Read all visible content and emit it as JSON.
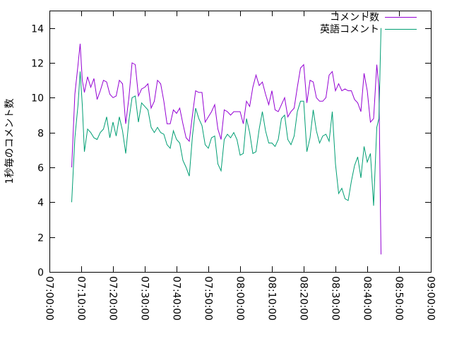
{
  "chart_data": {
    "type": "line",
    "title": "",
    "xlabel": "",
    "ylabel": "1秒毎のコメント数",
    "ylim": [
      0,
      15
    ],
    "xlim": [
      "07:00:00",
      "09:00:00"
    ],
    "yticks": [
      0,
      2,
      4,
      6,
      8,
      10,
      12,
      14
    ],
    "xticks": [
      "07:00:00",
      "07:10:00",
      "07:20:00",
      "07:30:00",
      "07:40:00",
      "07:50:00",
      "08:00:00",
      "08:10:00",
      "08:20:00",
      "08:30:00",
      "08:40:00",
      "08:50:00",
      "09:00:00"
    ],
    "legend_position": "top-right",
    "grid": false,
    "series": [
      {
        "name": "コメント数",
        "color": "#9400d3",
        "points": [
          [
            "07:07:00",
            6.0
          ],
          [
            "07:08:00",
            10.2
          ],
          [
            "07:09:00",
            11.9
          ],
          [
            "07:09:40",
            13.1
          ],
          [
            "07:10:20",
            11.0
          ],
          [
            "07:11:00",
            10.3
          ],
          [
            "07:12:00",
            11.2
          ],
          [
            "07:13:00",
            10.6
          ],
          [
            "07:14:00",
            11.1
          ],
          [
            "07:15:00",
            9.9
          ],
          [
            "07:16:00",
            10.4
          ],
          [
            "07:17:00",
            11.0
          ],
          [
            "07:18:00",
            10.9
          ],
          [
            "07:19:00",
            10.2
          ],
          [
            "07:20:00",
            10.0
          ],
          [
            "07:21:00",
            10.1
          ],
          [
            "07:22:00",
            11.0
          ],
          [
            "07:23:00",
            10.8
          ],
          [
            "07:24:00",
            8.5
          ],
          [
            "07:25:00",
            10.0
          ],
          [
            "07:26:00",
            12.0
          ],
          [
            "07:27:00",
            11.9
          ],
          [
            "07:28:00",
            10.1
          ],
          [
            "07:29:00",
            10.5
          ],
          [
            "07:30:00",
            10.6
          ],
          [
            "07:31:00",
            10.8
          ],
          [
            "07:32:00",
            9.4
          ],
          [
            "07:33:00",
            9.8
          ],
          [
            "07:34:00",
            11.0
          ],
          [
            "07:35:00",
            10.8
          ],
          [
            "07:36:00",
            9.8
          ],
          [
            "07:37:00",
            8.5
          ],
          [
            "07:38:00",
            8.5
          ],
          [
            "07:39:00",
            9.3
          ],
          [
            "07:40:00",
            9.1
          ],
          [
            "07:41:00",
            9.4
          ],
          [
            "07:42:00",
            8.5
          ],
          [
            "07:43:00",
            7.7
          ],
          [
            "07:44:00",
            7.5
          ],
          [
            "07:45:00",
            9.0
          ],
          [
            "07:46:00",
            10.4
          ],
          [
            "07:47:00",
            10.3
          ],
          [
            "07:48:00",
            10.3
          ],
          [
            "07:49:00",
            8.6
          ],
          [
            "07:50:00",
            8.9
          ],
          [
            "07:51:00",
            9.2
          ],
          [
            "07:52:00",
            9.6
          ],
          [
            "07:53:00",
            8.2
          ],
          [
            "07:54:00",
            7.6
          ],
          [
            "07:55:00",
            9.3
          ],
          [
            "07:56:00",
            9.2
          ],
          [
            "07:57:00",
            9.0
          ],
          [
            "07:58:00",
            9.2
          ],
          [
            "07:59:00",
            9.2
          ],
          [
            "08:00:00",
            9.2
          ],
          [
            "08:01:00",
            8.5
          ],
          [
            "08:02:00",
            9.8
          ],
          [
            "08:03:00",
            9.5
          ],
          [
            "08:04:00",
            10.6
          ],
          [
            "08:05:00",
            11.3
          ],
          [
            "08:06:00",
            10.7
          ],
          [
            "08:07:00",
            10.9
          ],
          [
            "08:08:00",
            10.2
          ],
          [
            "08:09:00",
            9.6
          ],
          [
            "08:10:00",
            10.4
          ],
          [
            "08:11:00",
            9.3
          ],
          [
            "08:12:00",
            9.2
          ],
          [
            "08:13:00",
            9.6
          ],
          [
            "08:14:00",
            10.0
          ],
          [
            "08:15:00",
            8.9
          ],
          [
            "08:16:00",
            9.2
          ],
          [
            "08:17:00",
            9.4
          ],
          [
            "08:18:00",
            10.6
          ],
          [
            "08:19:00",
            11.7
          ],
          [
            "08:20:00",
            11.9
          ],
          [
            "08:21:00",
            9.7
          ],
          [
            "08:22:00",
            11.0
          ],
          [
            "08:23:00",
            10.9
          ],
          [
            "08:24:00",
            10.0
          ],
          [
            "08:25:00",
            9.8
          ],
          [
            "08:26:00",
            9.8
          ],
          [
            "08:27:00",
            10.0
          ],
          [
            "08:28:00",
            11.3
          ],
          [
            "08:29:00",
            11.5
          ],
          [
            "08:30:00",
            10.4
          ],
          [
            "08:31:00",
            10.8
          ],
          [
            "08:32:00",
            10.4
          ],
          [
            "08:33:00",
            10.5
          ],
          [
            "08:34:00",
            10.4
          ],
          [
            "08:35:00",
            10.4
          ],
          [
            "08:36:00",
            9.9
          ],
          [
            "08:37:00",
            9.7
          ],
          [
            "08:38:00",
            9.2
          ],
          [
            "08:39:00",
            11.4
          ],
          [
            "08:40:00",
            10.4
          ],
          [
            "08:41:00",
            8.6
          ],
          [
            "08:42:00",
            8.8
          ],
          [
            "08:43:00",
            11.9
          ],
          [
            "08:43:40",
            10.6
          ],
          [
            "08:44:20",
            1.0
          ]
        ]
      },
      {
        "name": "英語コメント",
        "color": "#009e73",
        "points": [
          [
            "07:07:00",
            4.0
          ],
          [
            "07:08:00",
            7.7
          ],
          [
            "07:09:00",
            9.6
          ],
          [
            "07:09:40",
            11.5
          ],
          [
            "07:10:20",
            9.6
          ],
          [
            "07:11:00",
            6.9
          ],
          [
            "07:12:00",
            8.2
          ],
          [
            "07:13:00",
            8.0
          ],
          [
            "07:14:00",
            7.7
          ],
          [
            "07:15:00",
            7.6
          ],
          [
            "07:16:00",
            8.0
          ],
          [
            "07:17:00",
            8.2
          ],
          [
            "07:18:00",
            8.9
          ],
          [
            "07:19:00",
            7.7
          ],
          [
            "07:20:00",
            8.6
          ],
          [
            "07:21:00",
            7.8
          ],
          [
            "07:22:00",
            8.9
          ],
          [
            "07:23:00",
            8.1
          ],
          [
            "07:24:00",
            6.8
          ],
          [
            "07:25:00",
            8.7
          ],
          [
            "07:26:00",
            10.0
          ],
          [
            "07:27:00",
            10.1
          ],
          [
            "07:28:00",
            8.6
          ],
          [
            "07:29:00",
            9.7
          ],
          [
            "07:30:00",
            9.5
          ],
          [
            "07:31:00",
            9.3
          ],
          [
            "07:32:00",
            8.3
          ],
          [
            "07:33:00",
            8.0
          ],
          [
            "07:34:00",
            8.3
          ],
          [
            "07:35:00",
            8.0
          ],
          [
            "07:36:00",
            7.9
          ],
          [
            "07:37:00",
            7.3
          ],
          [
            "07:38:00",
            7.1
          ],
          [
            "07:39:00",
            8.1
          ],
          [
            "07:40:00",
            7.6
          ],
          [
            "07:41:00",
            7.4
          ],
          [
            "07:42:00",
            6.4
          ],
          [
            "07:43:00",
            6.0
          ],
          [
            "07:44:00",
            5.5
          ],
          [
            "07:45:00",
            7.8
          ],
          [
            "07:46:00",
            9.4
          ],
          [
            "07:47:00",
            8.8
          ],
          [
            "07:48:00",
            8.4
          ],
          [
            "07:49:00",
            7.3
          ],
          [
            "07:50:00",
            7.1
          ],
          [
            "07:51:00",
            7.7
          ],
          [
            "07:52:00",
            7.8
          ],
          [
            "07:53:00",
            6.2
          ],
          [
            "07:54:00",
            5.8
          ],
          [
            "07:55:00",
            7.6
          ],
          [
            "07:56:00",
            7.9
          ],
          [
            "07:57:00",
            7.7
          ],
          [
            "07:58:00",
            8.0
          ],
          [
            "07:59:00",
            7.6
          ],
          [
            "08:00:00",
            6.7
          ],
          [
            "08:01:00",
            6.8
          ],
          [
            "08:02:00",
            8.8
          ],
          [
            "08:03:00",
            8.0
          ],
          [
            "08:04:00",
            6.8
          ],
          [
            "08:05:00",
            6.9
          ],
          [
            "08:06:00",
            8.2
          ],
          [
            "08:07:00",
            9.2
          ],
          [
            "08:08:00",
            8.1
          ],
          [
            "08:09:00",
            7.4
          ],
          [
            "08:10:00",
            7.4
          ],
          [
            "08:11:00",
            7.2
          ],
          [
            "08:12:00",
            7.6
          ],
          [
            "08:13:00",
            8.8
          ],
          [
            "08:14:00",
            9.0
          ],
          [
            "08:15:00",
            7.6
          ],
          [
            "08:16:00",
            7.3
          ],
          [
            "08:17:00",
            7.8
          ],
          [
            "08:18:00",
            9.2
          ],
          [
            "08:19:00",
            9.8
          ],
          [
            "08:20:00",
            9.8
          ],
          [
            "08:21:00",
            6.9
          ],
          [
            "08:22:00",
            7.7
          ],
          [
            "08:23:00",
            9.3
          ],
          [
            "08:24:00",
            8.1
          ],
          [
            "08:25:00",
            7.4
          ],
          [
            "08:26:00",
            7.8
          ],
          [
            "08:27:00",
            7.9
          ],
          [
            "08:28:00",
            7.5
          ],
          [
            "08:29:00",
            9.2
          ],
          [
            "08:30:00",
            6.2
          ],
          [
            "08:31:00",
            4.5
          ],
          [
            "08:32:00",
            4.8
          ],
          [
            "08:33:00",
            4.2
          ],
          [
            "08:34:00",
            4.1
          ],
          [
            "08:35:00",
            5.2
          ],
          [
            "08:36:00",
            6.1
          ],
          [
            "08:37:00",
            6.6
          ],
          [
            "08:38:00",
            5.4
          ],
          [
            "08:39:00",
            7.2
          ],
          [
            "08:40:00",
            6.3
          ],
          [
            "08:41:00",
            6.8
          ],
          [
            "08:42:00",
            3.8
          ],
          [
            "08:43:00",
            8.3
          ],
          [
            "08:43:40",
            8.8
          ],
          [
            "08:44:20",
            14.0
          ]
        ]
      }
    ]
  }
}
